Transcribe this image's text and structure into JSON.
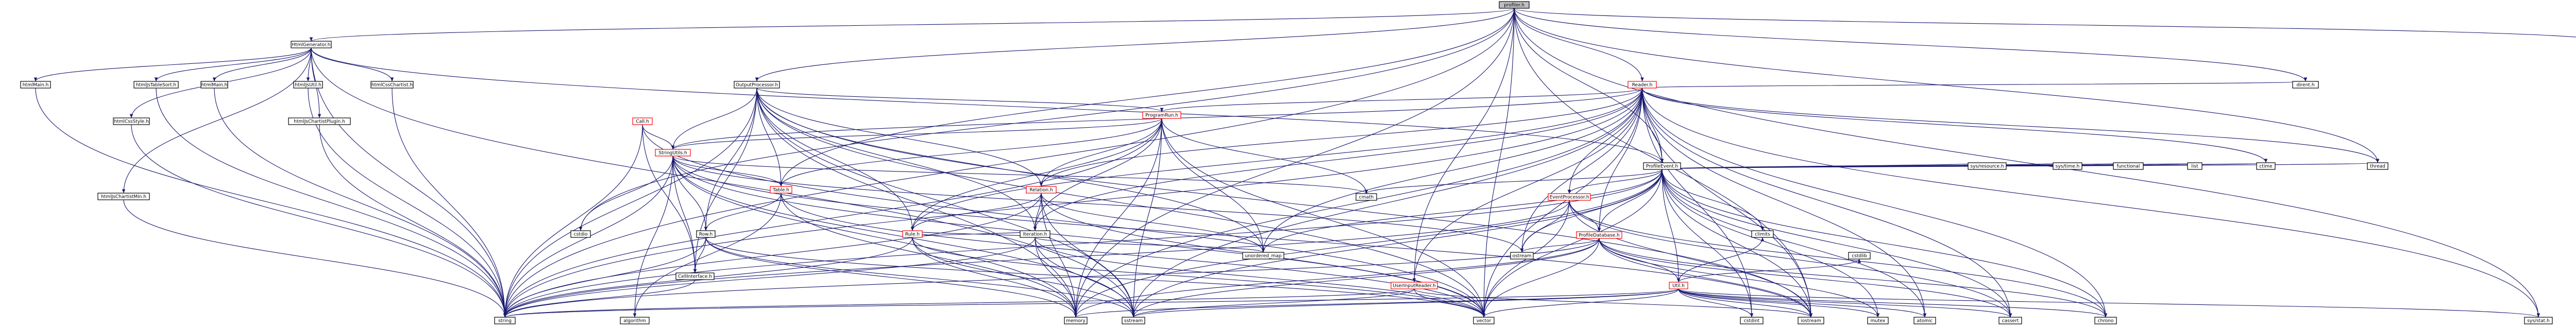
{
  "nodes": {
    "profiler": "profiler.h",
    "htmlGenerator": "HtmlGenerator.h",
    "reader": "Reader.h",
    "profileEvent": "ProfileEvent.h",
    "outputProcessor": "OutputProcessor.h",
    "programRun": "ProgramRun.h",
    "call": "Call.h",
    "stringUtils": "StringUtils.h",
    "table": "Table.h",
    "row": "Row.h",
    "rule": "Rule.h",
    "relation": "Relation.h",
    "iteration": "Iteration.h",
    "eventProcessor": "EventProcessor.h",
    "profileDatabase": "ProfileDatabase.h",
    "util": "Util.h",
    "userInputReader": "UserInputReader.h",
    "cellInterface": "CellInterface.h",
    "htmlMain": "htmlMain.h",
    "htmlJsTableSort": "htmlJsTableSort.h",
    "htmlMainHtml": "htmlMain.h",
    "htmlJsUtil": "htmlJsUtil.h",
    "htmlCssChartist": "htmlCssChartist.h",
    "htmlCssStyle": "htmlCssStyle.h",
    "htmlJsChartistPlugin": "htmlJsChartistPlugin.h",
    "htmlJsChartistMin": "htmlJsChartistMin.h",
    "string": "string",
    "vector": "vector",
    "memory": "memory",
    "sstream": "sstream",
    "iostream": "iostream",
    "algorithm": "algorithm",
    "unordered_map": "unordered_map",
    "cstdio": "cstdio",
    "cmath": "cmath",
    "ostream": "ostream",
    "cassert": "cassert",
    "chrono": "chrono",
    "ctime": "ctime",
    "thread": "thread",
    "dirent": "dirent.h",
    "sysStat": "sys/stat.h",
    "sysIoctl": "sys/ioctl.h",
    "sysResource": "sys/resource.h",
    "sysTime": "sys/time.h",
    "functional": "functional",
    "list": "list",
    "atomic": "atomic",
    "mutex": "mutex",
    "cstdint": "cstdint",
    "climits": "climits",
    "cstdlib": "cstdlib"
  },
  "style": {
    "edge_color": "#191970",
    "root_fill": "#bfbfbf",
    "node_border": "#000000",
    "truncated_border": "#ff0000",
    "background": "#ffffff"
  }
}
